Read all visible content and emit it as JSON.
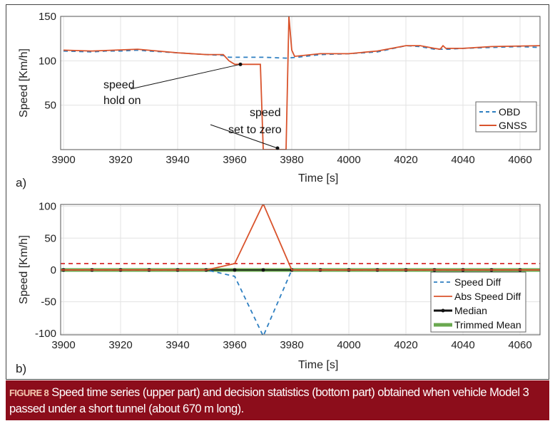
{
  "chart_data": [
    {
      "type": "line",
      "panel_label": "a)",
      "xlabel": "Time [s]",
      "ylabel": "Speed [Km/h]",
      "xlim": [
        3899,
        4067
      ],
      "ylim": [
        0,
        150
      ],
      "grid": true,
      "legend_position": "right",
      "xticks": [
        3900,
        3920,
        3940,
        3960,
        3980,
        4000,
        4020,
        4040,
        4060
      ],
      "yticks": [
        50,
        100,
        150
      ],
      "series": [
        {
          "name": "OBD",
          "style": "dashed",
          "color": "#2e7fc1",
          "x": [
            3900,
            3905,
            3910,
            3915,
            3920,
            3926,
            3930,
            3940,
            3950,
            3956,
            3958,
            3970,
            3978,
            3982,
            3990,
            4000,
            4010,
            4020,
            4025,
            4030,
            4035,
            4040,
            4050,
            4060,
            4067
          ],
          "y": [
            111,
            110.5,
            110,
            111,
            111,
            112,
            111,
            109,
            107,
            106,
            104,
            104,
            103,
            104,
            107,
            108,
            110,
            117,
            116,
            113,
            113,
            114,
            115,
            116,
            115
          ]
        },
        {
          "name": "GNSS",
          "style": "solid",
          "color": "#d9532c",
          "x": [
            3900,
            3910,
            3926,
            3940,
            3950,
            3956,
            3958,
            3960,
            3969,
            3970,
            3978,
            3979,
            3980,
            3981,
            3990,
            4000,
            4010,
            4020,
            4025,
            4030,
            4032,
            4033,
            4034,
            4040,
            4050,
            4067
          ],
          "y": [
            112,
            111,
            113,
            109,
            107,
            107,
            100,
            96,
            96,
            0,
            0,
            150,
            112,
            105,
            108,
            108,
            111,
            117,
            117,
            114,
            113,
            117,
            114,
            114,
            116,
            117
          ]
        }
      ],
      "annotations": [
        {
          "text_lines": [
            "speed",
            "hold on"
          ],
          "x": 3962,
          "y": 96
        },
        {
          "text_lines": [
            "speed",
            "set to zero"
          ],
          "x": 3975,
          "y": 0
        }
      ]
    },
    {
      "type": "line",
      "panel_label": "b)",
      "xlabel": "Time [s]",
      "ylabel": "Speed [Km/h]",
      "xlim": [
        3899,
        4067
      ],
      "ylim": [
        -102,
        103
      ],
      "grid": true,
      "legend_position": "bottom-right",
      "xticks": [
        3900,
        3920,
        3940,
        3960,
        3980,
        4000,
        4020,
        4040,
        4060
      ],
      "yticks": [
        -100,
        -50,
        0,
        50,
        100
      ],
      "series": [
        {
          "style": "dashed",
          "color": "#d62b2b",
          "x": [
            3899,
            4067
          ],
          "y": [
            10,
            10
          ]
        },
        {
          "name": "Trimmed Mean",
          "style": "thick",
          "color": "#6aa84f",
          "x": [
            3899,
            4067
          ],
          "y": [
            0,
            0
          ]
        },
        {
          "name": "Median",
          "style": "markers",
          "color": "#111111",
          "x": [
            3900,
            3910,
            3920,
            3930,
            3940,
            3950,
            3960,
            3970,
            3980,
            3990,
            4000,
            4010,
            4020,
            4030,
            4040,
            4050,
            4060
          ],
          "y": [
            0,
            0,
            0,
            0,
            0,
            0,
            0,
            0,
            0,
            0,
            0,
            0,
            0,
            0,
            0,
            0,
            0
          ]
        },
        {
          "name": "Speed Diff",
          "style": "dashed",
          "color": "#2e7fc1",
          "x": [
            3899,
            3950,
            3960,
            3970,
            3980,
            4067
          ],
          "y": [
            0,
            0,
            -10,
            -104,
            0,
            0
          ]
        },
        {
          "name": "Abs Speed Diff",
          "style": "solid",
          "color": "#d9532c",
          "x": [
            3899,
            3950,
            3960,
            3970,
            3980,
            4067
          ],
          "y": [
            0,
            0,
            10,
            104,
            0,
            0
          ]
        }
      ],
      "legend_order": [
        "Speed Diff",
        "Abs Speed Diff",
        "Median",
        "Trimmed Mean"
      ]
    }
  ],
  "caption": {
    "label": "FIGURE 8",
    "text": " Speed time series (upper part) and decision statistics (bottom part) obtained when vehicle Model 3 passed under a short tunnel (about 670 m long)."
  }
}
